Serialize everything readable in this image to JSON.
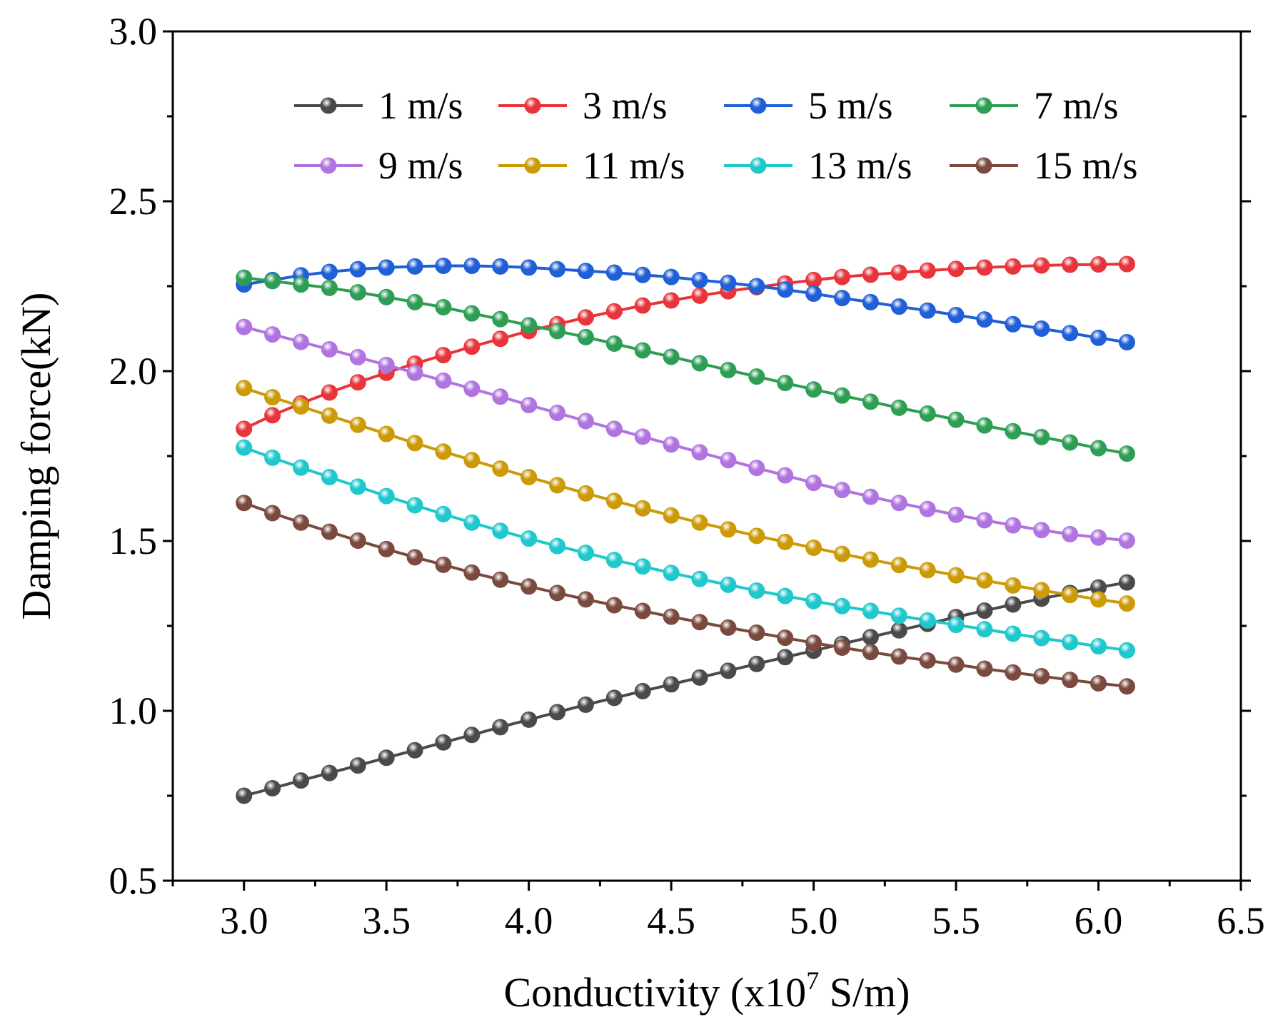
{
  "chart_data": {
    "type": "line",
    "xlabel_main": "Conductivity (x10",
    "xlabel_sup": "7",
    "xlabel_tail": " S/m)",
    "ylabel": "Damping force(kN)",
    "xlim": [
      2.75,
      6.5
    ],
    "ylim": [
      0.5,
      3.0
    ],
    "xticks": [
      "3.0",
      "3.5",
      "4.0",
      "4.5",
      "5.0",
      "5.5",
      "6.0",
      "6.5"
    ],
    "yticks": [
      "0.5",
      "1.0",
      "1.5",
      "2.0",
      "2.5",
      "3.0"
    ],
    "xtick_values": [
      3.0,
      3.5,
      4.0,
      4.5,
      5.0,
      5.5,
      6.0,
      6.5
    ],
    "ytick_values": [
      0.5,
      1.0,
      1.5,
      2.0,
      2.5,
      3.0
    ],
    "legend_position": "top",
    "x": [
      3.0,
      3.1,
      3.2,
      3.3,
      3.4,
      3.5,
      3.6,
      3.7,
      3.8,
      3.9,
      4.0,
      4.1,
      4.2,
      4.3,
      4.4,
      4.5,
      4.6,
      4.7,
      4.8,
      4.9,
      5.0,
      5.1,
      5.2,
      5.3,
      5.4,
      5.5,
      5.6,
      5.7,
      5.8,
      5.9,
      6.0,
      6.1
    ],
    "series": [
      {
        "name": "1 m/s",
        "color": "#4a4a4a",
        "values": [
          0.75,
          0.772,
          0.795,
          0.817,
          0.839,
          0.862,
          0.884,
          0.907,
          0.929,
          0.952,
          0.974,
          0.996,
          1.018,
          1.038,
          1.058,
          1.078,
          1.098,
          1.118,
          1.138,
          1.158,
          1.177,
          1.197,
          1.217,
          1.237,
          1.256,
          1.276,
          1.295,
          1.313,
          1.33,
          1.347,
          1.363,
          1.378
        ]
      },
      {
        "name": "3 m/s",
        "color": "#e8343a",
        "values": [
          1.83,
          1.87,
          1.905,
          1.937,
          1.967,
          1.995,
          2.022,
          2.047,
          2.072,
          2.095,
          2.118,
          2.138,
          2.158,
          2.176,
          2.193,
          2.208,
          2.222,
          2.235,
          2.247,
          2.258,
          2.268,
          2.277,
          2.284,
          2.29,
          2.296,
          2.301,
          2.305,
          2.308,
          2.311,
          2.313,
          2.314,
          2.315
        ]
      },
      {
        "name": "5 m/s",
        "color": "#1f5fd8",
        "values": [
          2.255,
          2.268,
          2.282,
          2.292,
          2.3,
          2.305,
          2.308,
          2.31,
          2.31,
          2.308,
          2.305,
          2.3,
          2.295,
          2.29,
          2.283,
          2.277,
          2.268,
          2.26,
          2.25,
          2.24,
          2.228,
          2.215,
          2.203,
          2.19,
          2.178,
          2.165,
          2.152,
          2.138,
          2.125,
          2.112,
          2.098,
          2.085
        ]
      },
      {
        "name": "7 m/s",
        "color": "#2e9e55",
        "values": [
          2.275,
          2.265,
          2.255,
          2.245,
          2.232,
          2.218,
          2.203,
          2.188,
          2.17,
          2.153,
          2.135,
          2.118,
          2.1,
          2.081,
          2.061,
          2.042,
          2.023,
          2.003,
          1.984,
          1.965,
          1.946,
          1.928,
          1.91,
          1.892,
          1.875,
          1.857,
          1.84,
          1.823,
          1.806,
          1.79,
          1.773,
          1.757
        ]
      },
      {
        "name": "9 m/s",
        "color": "#b074e0",
        "values": [
          2.13,
          2.108,
          2.086,
          2.064,
          2.041,
          2.018,
          1.995,
          1.972,
          1.948,
          1.925,
          1.9,
          1.877,
          1.853,
          1.83,
          1.807,
          1.784,
          1.761,
          1.738,
          1.715,
          1.693,
          1.671,
          1.65,
          1.63,
          1.612,
          1.594,
          1.577,
          1.561,
          1.546,
          1.532,
          1.52,
          1.51,
          1.501
        ]
      },
      {
        "name": "11 m/s",
        "color": "#cc9a06",
        "values": [
          1.95,
          1.923,
          1.896,
          1.869,
          1.842,
          1.815,
          1.788,
          1.763,
          1.738,
          1.713,
          1.688,
          1.664,
          1.64,
          1.618,
          1.596,
          1.575,
          1.554,
          1.534,
          1.515,
          1.497,
          1.48,
          1.462,
          1.445,
          1.429,
          1.414,
          1.399,
          1.384,
          1.369,
          1.355,
          1.341,
          1.328,
          1.316
        ]
      },
      {
        "name": "13 m/s",
        "color": "#1ec8cc",
        "values": [
          1.775,
          1.745,
          1.716,
          1.688,
          1.66,
          1.632,
          1.605,
          1.579,
          1.554,
          1.53,
          1.507,
          1.485,
          1.465,
          1.444,
          1.425,
          1.406,
          1.388,
          1.371,
          1.354,
          1.338,
          1.323,
          1.308,
          1.294,
          1.28,
          1.266,
          1.253,
          1.24,
          1.227,
          1.214,
          1.202,
          1.19,
          1.178
        ]
      },
      {
        "name": "15 m/s",
        "color": "#7a4a3e",
        "values": [
          1.612,
          1.582,
          1.554,
          1.527,
          1.501,
          1.476,
          1.452,
          1.43,
          1.407,
          1.386,
          1.366,
          1.347,
          1.328,
          1.311,
          1.294,
          1.277,
          1.261,
          1.245,
          1.23,
          1.215,
          1.2,
          1.186,
          1.173,
          1.16,
          1.148,
          1.136,
          1.124,
          1.113,
          1.102,
          1.091,
          1.081,
          1.072
        ]
      }
    ]
  }
}
